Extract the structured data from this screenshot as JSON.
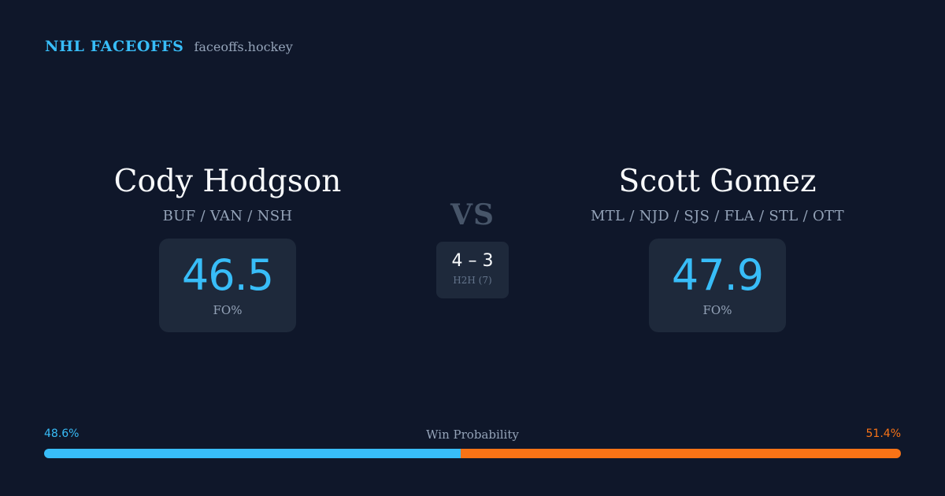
{
  "brand": {
    "name": "NHL FACEOFFS",
    "domain": "faceoffs.hockey"
  },
  "player_left": {
    "name": "Cody Hodgson",
    "teams": "BUF / VAN / NSH",
    "fo_value": "46.5",
    "fo_label": "FO%"
  },
  "player_right": {
    "name": "Scott Gomez",
    "teams": "MTL / NJD / SJS / FLA / STL / OTT",
    "fo_value": "47.9",
    "fo_label": "FO%"
  },
  "matchup": {
    "vs_label": "VS",
    "h2h_score": "4 – 3",
    "h2h_label": "H2H (7)"
  },
  "win_probability": {
    "title": "Win Probability",
    "left_label": "48.6%",
    "right_label": "51.4%",
    "left_value": 48.6,
    "right_value": 51.4
  },
  "colors": {
    "background": "#0f172a",
    "card": "#1e293b",
    "accent_left": "#38bdf8",
    "accent_right": "#f97316",
    "muted_text": "#94a3b8"
  }
}
